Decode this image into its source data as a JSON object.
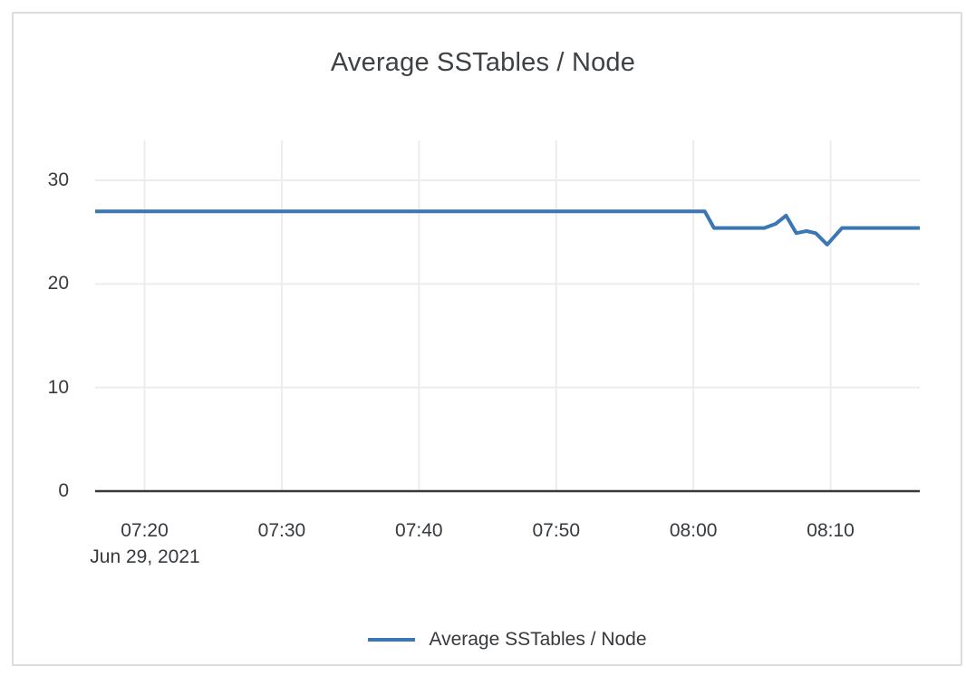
{
  "page": {
    "title": "Average SSTables / Node",
    "date_label": "Jun 29, 2021"
  },
  "colors": {
    "line": "#3d76b4",
    "grid": "#ececec",
    "axis": "#37393b",
    "tick_text": "#36393d",
    "title_text": "#3f4245",
    "card_border": "#dcdcdc",
    "background": "#ffffff"
  },
  "chart_data": {
    "type": "line",
    "title": "Average SSTables / Node",
    "xlabel": "",
    "ylabel": "",
    "x_axis_date": "Jun 29, 2021",
    "x_ticks": [
      "07:20",
      "07:30",
      "07:40",
      "07:50",
      "08:00",
      "08:10"
    ],
    "y_ticks": [
      0,
      10,
      20,
      30
    ],
    "x_domain": [
      "07:16:24",
      "08:16:30"
    ],
    "ylim": [
      0,
      33.85
    ],
    "grid": true,
    "legend_position": "bottom-center",
    "series": [
      {
        "name": "Average SSTables / Node",
        "color": "#3d76b4",
        "points": [
          {
            "t": "07:16:24",
            "v": 27
          },
          {
            "t": "08:00:50",
            "v": 27
          },
          {
            "t": "08:01:30",
            "v": 25.4
          },
          {
            "t": "08:05:10",
            "v": 25.4
          },
          {
            "t": "08:06:00",
            "v": 25.8
          },
          {
            "t": "08:06:45",
            "v": 26.6
          },
          {
            "t": "08:07:30",
            "v": 24.9
          },
          {
            "t": "08:08:15",
            "v": 25.1
          },
          {
            "t": "08:08:55",
            "v": 24.9
          },
          {
            "t": "08:09:45",
            "v": 23.8
          },
          {
            "t": "08:10:50",
            "v": 25.4
          },
          {
            "t": "08:16:30",
            "v": 25.4
          }
        ]
      }
    ]
  }
}
